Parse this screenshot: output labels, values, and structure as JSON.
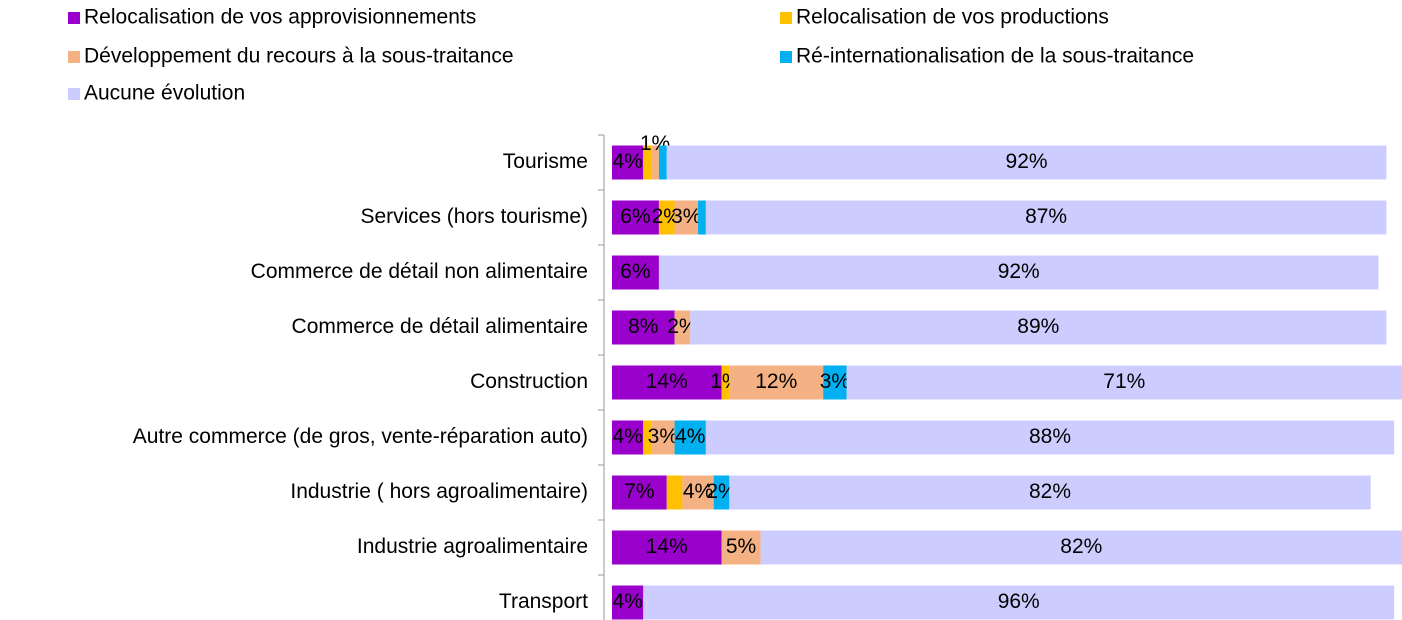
{
  "chart_data": {
    "type": "stacked_bar_horizontal",
    "categories": [
      "Tourisme",
      "Services (hors tourisme)",
      "Commerce de détail non alimentaire",
      "Commerce de détail alimentaire",
      "Construction",
      "Autre commerce (de gros, vente-réparation auto)",
      "Industrie ( hors agroalimentaire)",
      "Industrie agroalimentaire",
      "Transport"
    ],
    "xlim": [
      0,
      101
    ],
    "legend": "top",
    "series": [
      {
        "name": "Relocalisation de vos approvisionnements",
        "color": "#9900cc",
        "values": [
          4,
          6,
          6,
          8,
          14,
          4,
          7,
          14,
          4
        ],
        "value_labels": [
          "4%",
          "6%",
          "6%",
          "8%",
          "14%",
          "4%",
          "7%",
          "14%",
          "4%"
        ]
      },
      {
        "name": "Relocalisation de vos productions",
        "color": "#ffc000",
        "values": [
          1,
          2,
          0,
          0,
          1,
          1,
          2,
          0,
          0
        ],
        "value_labels": [
          null,
          "2%",
          null,
          null,
          "1%",
          null,
          null,
          null,
          null
        ]
      },
      {
        "name": "Développement du recours à la sous-traitance",
        "color": "#f4b183",
        "values": [
          1,
          3,
          0,
          2,
          12,
          3,
          4,
          5,
          0
        ],
        "value_labels": [
          "1%",
          "3%",
          null,
          "2%",
          "12%",
          "3%",
          "4%",
          "5%",
          null
        ]
      },
      {
        "name": "Ré-internationalisation de la sous-traitance",
        "color": "#00b0f0",
        "values": [
          1,
          1,
          0,
          0,
          3,
          4,
          2,
          0,
          0
        ],
        "value_labels": [
          null,
          null,
          null,
          null,
          "3%",
          "4%",
          "2%",
          null,
          null
        ]
      },
      {
        "name": "Aucune évolution",
        "color": "#ccccff",
        "values": [
          92,
          87,
          92,
          89,
          71,
          88,
          82,
          82,
          96
        ],
        "value_labels": [
          "92%",
          "87%",
          "92%",
          "89%",
          "71%",
          "88%",
          "82%",
          "82%",
          "96%"
        ]
      }
    ]
  }
}
